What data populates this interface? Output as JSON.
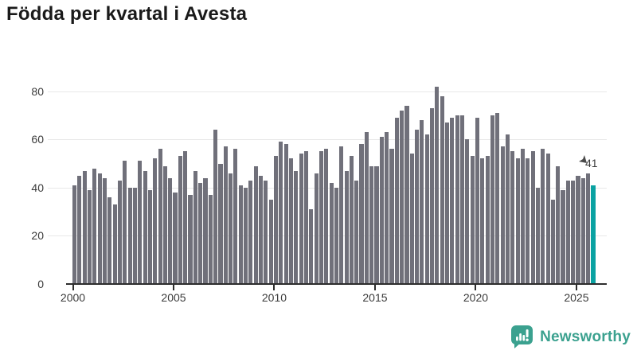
{
  "title": "Födda per kvartal i Avesta",
  "chart_data": {
    "type": "bar",
    "title": "Födda per kvartal i Avesta",
    "x_start_year": 2000,
    "x_tick_labels": [
      "2000",
      "2005",
      "2010",
      "2015",
      "2020",
      "2025"
    ],
    "y_tick_labels": [
      "0",
      "20",
      "40",
      "60",
      "80"
    ],
    "y_ticks": [
      0,
      20,
      40,
      60,
      80
    ],
    "ylim": [
      0,
      84
    ],
    "grid": "horizontal",
    "legend": "none",
    "values": [
      41,
      45,
      47,
      39,
      48,
      46,
      44,
      36,
      33,
      43,
      51,
      40,
      40,
      51,
      47,
      39,
      52,
      56,
      49,
      44,
      38,
      53,
      55,
      37,
      47,
      42,
      44,
      37,
      64,
      50,
      57,
      46,
      56,
      41,
      40,
      43,
      49,
      45,
      43,
      35,
      53,
      59,
      58,
      52,
      47,
      54,
      55,
      31,
      46,
      55,
      56,
      42,
      40,
      57,
      47,
      53,
      43,
      58,
      63,
      49,
      49,
      61,
      63,
      56,
      69,
      72,
      74,
      54,
      64,
      68,
      62,
      73,
      82,
      78,
      67,
      69,
      70,
      70,
      60,
      53,
      69,
      52,
      53,
      70,
      71,
      57,
      62,
      55,
      52,
      56,
      52,
      55,
      40,
      56,
      54,
      35,
      49,
      39,
      43,
      43,
      45,
      44,
      46,
      41
    ],
    "highlight_index": 103,
    "highlight_label": "41"
  },
  "annotation": {
    "label": "41"
  },
  "branding": {
    "name": "Newsworthy"
  },
  "colors": {
    "bar": "#70707a",
    "highlight": "#0aa2a2",
    "grid": "#e7e7e7",
    "axis": "#2d2d2d",
    "text": "#3a3a3a",
    "title": "#1a1a1a",
    "brand": "#3ba18f"
  }
}
